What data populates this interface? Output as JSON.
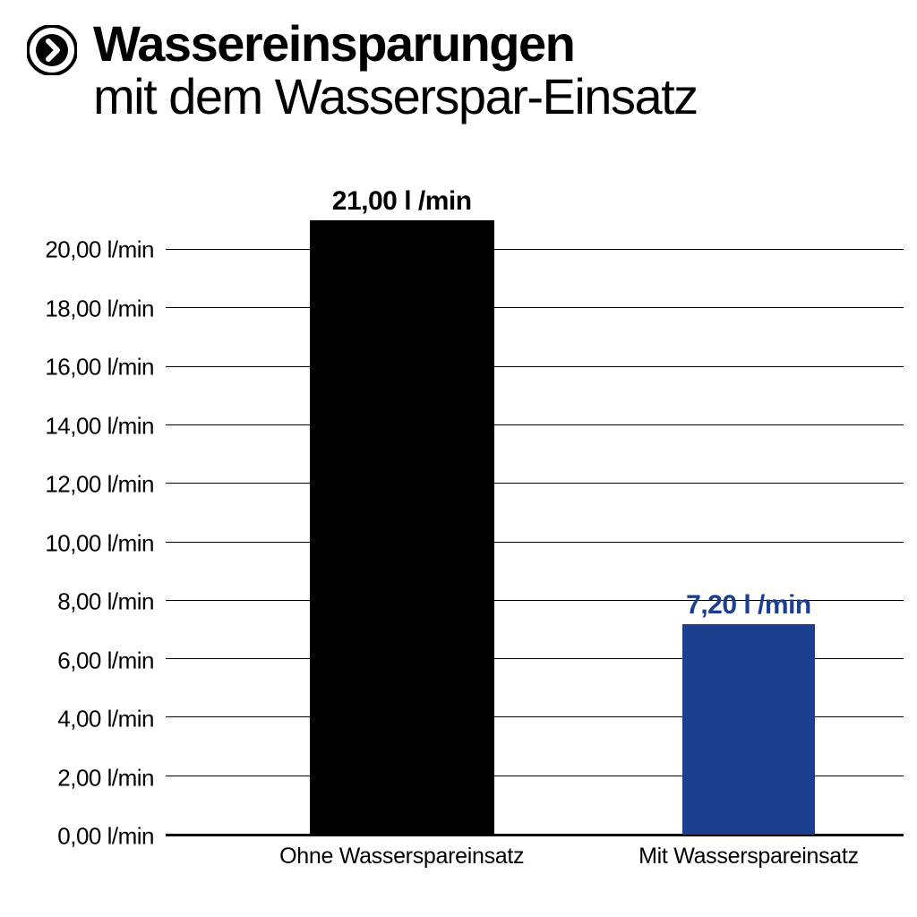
{
  "title": {
    "bold": "Wassereinsparungen",
    "normal": "mit dem Wasserspar-Einsatz"
  },
  "chart": {
    "type": "bar",
    "ylim": [
      0,
      21.5
    ],
    "ytick_step": 2,
    "y_unit": "l/min",
    "ytick_labels": [
      "0,00 l/min",
      "2,00 l/min",
      "4,00 l/min",
      "6,00 l/min",
      "8,00 l/min",
      "10,00 l/min",
      "12,00 l/min",
      "14,00 l/min",
      "16,00 l/min",
      "18,00 l/min",
      "20,00 l/min"
    ],
    "grid_color": "#000000",
    "background_color": "#ffffff",
    "tick_fontsize": 26,
    "category_fontsize": 25,
    "title_fontsize": 56,
    "value_label_fontsize": 30,
    "bars": [
      {
        "category": "Ohne Wasserspareinsatz",
        "value": 21.0,
        "value_label": "21,00 l /min",
        "color": "#000000",
        "label_color": "#000000",
        "x_center_pct": 32,
        "width_pct": 25
      },
      {
        "category": "Mit Wasserspareinsatz",
        "value": 7.2,
        "value_label": "7,20 l /min",
        "color": "#1b3e8f",
        "label_color": "#1b3e8f",
        "x_center_pct": 79,
        "width_pct": 18
      }
    ]
  },
  "icon": {
    "name": "chevron-right-circle",
    "outer_color": "#000000",
    "inner_color": "#ffffff"
  }
}
